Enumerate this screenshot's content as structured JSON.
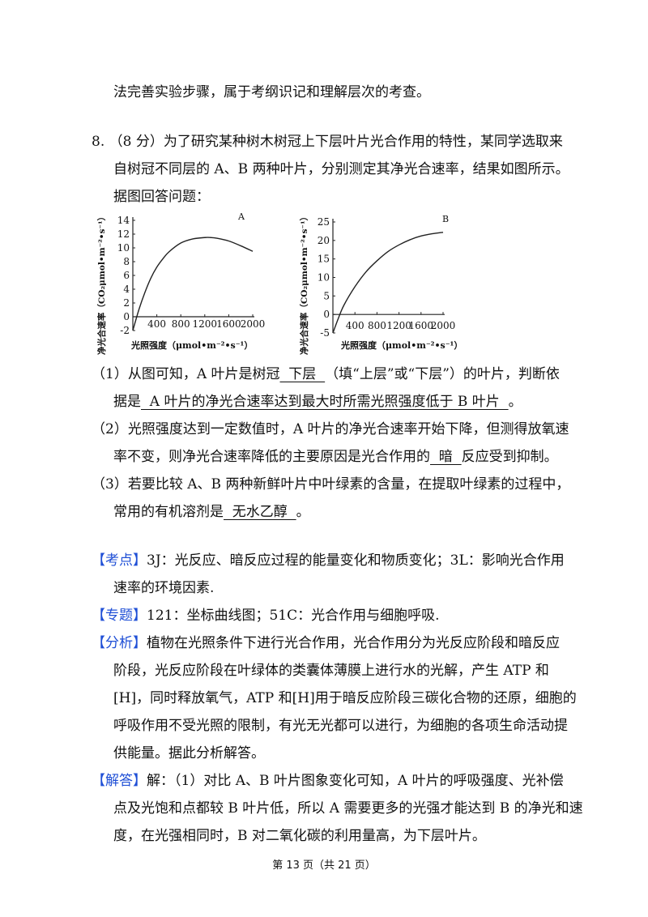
{
  "intro_line": "法完善实验步骤，属于考纲识记和理解层次的考查。",
  "question": {
    "line1": "8.  （8 分）为了研究某种树木树冠上下层叶片光合作用的特性，某同学选取来",
    "line2": "自树冠不同层的 A、B 两种叶片，分别测定其净光合速率，结果如图所示。",
    "line3": "据图回答问题："
  },
  "q1": {
    "pre": "（1）从图可知，A 叶片是树冠",
    "blank": "  下层  ",
    "post": "（填“上层”或“下层”）的叶片，判断依",
    "line2_pre": "据是",
    "line2_blank": "  A 叶片的净光合速率达到最大时所需光照强度低于 B 叶片  ",
    "line2_post": "。"
  },
  "q2": {
    "line1": "（2）光照强度达到一定数值时，A 叶片的净光合速率开始下降，但测得放氧速",
    "line2_pre": "率不变，则净光合速率降低的主要原因是光合作用的",
    "line2_blank": "  暗  ",
    "line2_post": "反应受到抑制。"
  },
  "q3": {
    "line1": "（3）若要比较 A、B 两种新鲜叶片中叶绿素的含量，在提取叶绿素的过程中，",
    "line2_pre": "常用的有机溶剂是",
    "line2_blank": "  无水乙醇  ",
    "line2_post": "。"
  },
  "kaodian": {
    "tag": "【考点】",
    "line1": "3J：光反应、暗反应过程的能量变化和物质变化；3L：影响光合作用",
    "line2": "速率的环境因素."
  },
  "zhuanti": {
    "tag": "【专题】",
    "line1": "121：坐标曲线图；51C：光合作用与细胞呼吸."
  },
  "fenxi": {
    "tag": "【分析】",
    "line1": "植物在光照条件下进行光合作用，光合作用分为光反应阶段和暗反应",
    "line2": "阶段，光反应阶段在叶绿体的类囊体薄膜上进行水的光解，产生 ATP 和",
    "line3": "[H]，同时释放氧气，ATP 和[H]用于暗反应阶段三碳化合物的还原，细胞的",
    "line4": "呼吸作用不受光照的限制，有光无光都可以进行，为细胞的各项生命活动提",
    "line5": "供能量。据此分析解答。"
  },
  "jieda": {
    "tag": "【解答】",
    "line1": "解：（1）对比 A、B 叶片图象变化可知，A 叶片的呼吸强度、光补偿",
    "line2": "点及光饱和点都较 B 叶片低，所以 A 需要更多的光强才能达到 B 的净光和速",
    "line3": "度，在光强相同时，B 对二氧化碳的利用量高，为下层叶片。"
  },
  "footer": "第 13 页（共 21 页）",
  "chart_data": [
    {
      "type": "line",
      "title": "A",
      "xlabel": "光照强度（μmol•m⁻²•s⁻¹）",
      "ylabel": "净光合速率（CO₂μmol•m⁻²•s⁻¹）",
      "xlim": [
        0,
        2000
      ],
      "ylim": [
        -2,
        14
      ],
      "xticks": [
        "400",
        "800",
        "1200",
        "1600",
        "2000"
      ],
      "yticks": [
        "-2",
        "0",
        "2",
        "4",
        "6",
        "8",
        "10",
        "12",
        "14"
      ],
      "series": [
        {
          "x": [
            0,
            100,
            200,
            300,
            400,
            500,
            600,
            800,
            1000,
            1200,
            1300,
            1400,
            1600,
            1800,
            2000
          ],
          "y": [
            -2,
            1.0,
            3.5,
            5.6,
            7.2,
            8.4,
            9.4,
            10.7,
            11.3,
            11.5,
            11.5,
            11.4,
            11.0,
            10.3,
            9.5
          ]
        }
      ]
    },
    {
      "type": "line",
      "title": "B",
      "xlabel": "光照强度（μmol•m⁻²•s⁻¹）",
      "ylabel": "净光合速率（CO₂μmol•m⁻²•s⁻¹）",
      "xlim": [
        0,
        2000
      ],
      "ylim": [
        -5,
        25
      ],
      "xticks": [
        "400",
        "800",
        "1200",
        "1600",
        "2000"
      ],
      "yticks": [
        "-5",
        "0",
        "5",
        "10",
        "15",
        "20",
        "25"
      ],
      "series": [
        {
          "x": [
            0,
            100,
            200,
            400,
            600,
            800,
            1000,
            1200,
            1400,
            1600,
            1800,
            2000
          ],
          "y": [
            -5,
            -1,
            2.5,
            7.5,
            11.5,
            14.5,
            17,
            18.8,
            20.2,
            21.2,
            21.8,
            22.2
          ]
        }
      ]
    }
  ]
}
